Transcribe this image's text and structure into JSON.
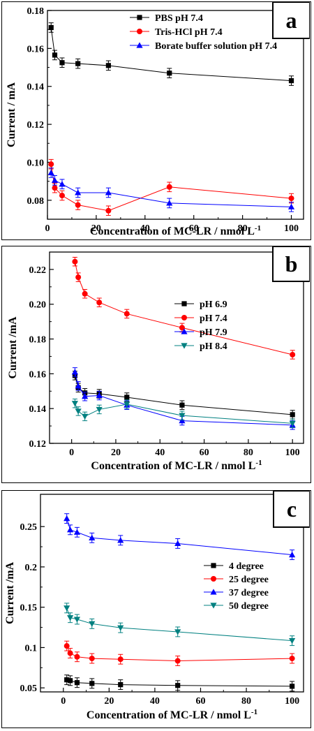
{
  "panels": [
    {
      "letter": "a",
      "xlabel": "Concentration of MC-LR / nmol L",
      "xlabel_sup": "-1",
      "ylabel": "Current / mA",
      "x_ticks": [
        "0",
        "20",
        "40",
        "60",
        "80",
        "100"
      ],
      "y_ticks": [
        "0.08",
        "0.10",
        "0.12",
        "0.14",
        "0.16",
        "0.18"
      ]
    },
    {
      "letter": "b",
      "xlabel": "Concentration of MC-LR /  nmol L",
      "xlabel_sup": "-1",
      "ylabel": "Current /mA",
      "x_ticks": [
        "0",
        "20",
        "40",
        "60",
        "80",
        "100"
      ],
      "y_ticks": [
        "0.12",
        "0.14",
        "0.16",
        "0.18",
        "0.20",
        "0.22"
      ]
    },
    {
      "letter": "c",
      "xlabel": "Concentration of MC-LR / nmol L",
      "xlabel_sup": "-1",
      "ylabel": "Current /mA",
      "x_ticks": [
        "0",
        "20",
        "40",
        "60",
        "80",
        "100"
      ],
      "y_ticks": [
        "0.05",
        "0.1",
        "0.15",
        "0.2",
        "0.25"
      ]
    }
  ],
  "chart_data": [
    {
      "type": "line",
      "title": "",
      "xlabel": "Concentration of MC-LR / nmol L-1",
      "ylabel": "Current / mA",
      "xlim": [
        0,
        105
      ],
      "ylim": [
        0.07,
        0.18
      ],
      "legend_position": "top-right",
      "x": [
        1.5,
        3,
        6,
        12.5,
        25,
        50,
        100
      ],
      "series": [
        {
          "name": "PBS pH 7.4",
          "marker": "square",
          "color": "#000000",
          "values": [
            0.171,
            0.1565,
            0.1525,
            0.152,
            0.151,
            0.147,
            0.143
          ]
        },
        {
          "name": "Tris-HCl pH 7.4",
          "marker": "circle",
          "color": "#ff0000",
          "values": [
            0.099,
            0.0865,
            0.0825,
            0.0775,
            0.0745,
            0.087,
            0.081
          ]
        },
        {
          "name": "Borate buffer solution pH 7.4",
          "marker": "triangle-up",
          "color": "#0000ff",
          "values": [
            0.0945,
            0.0905,
            0.0885,
            0.084,
            0.084,
            0.0785,
            0.0765
          ]
        }
      ]
    },
    {
      "type": "line",
      "title": "",
      "xlabel": "Concentration of MC-LR /  nmol L-1",
      "ylabel": "Current /mA",
      "xlim": [
        -10,
        105
      ],
      "ylim": [
        0.12,
        0.23
      ],
      "legend_position": "top-right",
      "x": [
        1.5,
        3,
        6,
        12.5,
        25,
        50,
        100
      ],
      "series": [
        {
          "name": "pH 6.9",
          "marker": "square",
          "color": "#000000",
          "values": [
            0.159,
            0.152,
            0.149,
            0.1485,
            0.1465,
            0.142,
            0.1365
          ]
        },
        {
          "name": "pH 7.4",
          "marker": "circle",
          "color": "#ff0000",
          "values": [
            0.2245,
            0.2155,
            0.206,
            0.201,
            0.1945,
            0.1865,
            0.171
          ]
        },
        {
          "name": "pH 7.9",
          "marker": "triangle-up",
          "color": "#0000ff",
          "values": [
            0.161,
            0.153,
            0.147,
            0.1475,
            0.142,
            0.133,
            0.1305
          ]
        },
        {
          "name": "pH 8.4",
          "marker": "triangle-down",
          "color": "#008080",
          "values": [
            0.143,
            0.1385,
            0.1355,
            0.1395,
            0.1425,
            0.136,
            0.1315
          ]
        }
      ]
    },
    {
      "type": "line",
      "title": "",
      "xlabel": "Concentration of MC-LR / nmol L-1",
      "ylabel": "Current /mA",
      "xlim": [
        -10,
        105
      ],
      "ylim": [
        0.045,
        0.29
      ],
      "legend_position": "right",
      "x": [
        1.5,
        3,
        6,
        12.5,
        25,
        50,
        100
      ],
      "series": [
        {
          "name": "4   degree",
          "marker": "square",
          "color": "#000000",
          "values": [
            0.06,
            0.059,
            0.0565,
            0.0555,
            0.054,
            0.053,
            0.052
          ]
        },
        {
          "name": "25 degree",
          "marker": "circle",
          "color": "#ff0000",
          "values": [
            0.102,
            0.093,
            0.0885,
            0.0865,
            0.0855,
            0.0835,
            0.0865
          ]
        },
        {
          "name": "37 degree",
          "marker": "triangle-up",
          "color": "#0000ff",
          "values": [
            0.26,
            0.246,
            0.243,
            0.236,
            0.233,
            0.229,
            0.215
          ]
        },
        {
          "name": "50 degree",
          "marker": "triangle-down",
          "color": "#008080",
          "values": [
            0.149,
            0.137,
            0.135,
            0.1295,
            0.1245,
            0.1195,
            0.1085
          ]
        }
      ]
    }
  ]
}
